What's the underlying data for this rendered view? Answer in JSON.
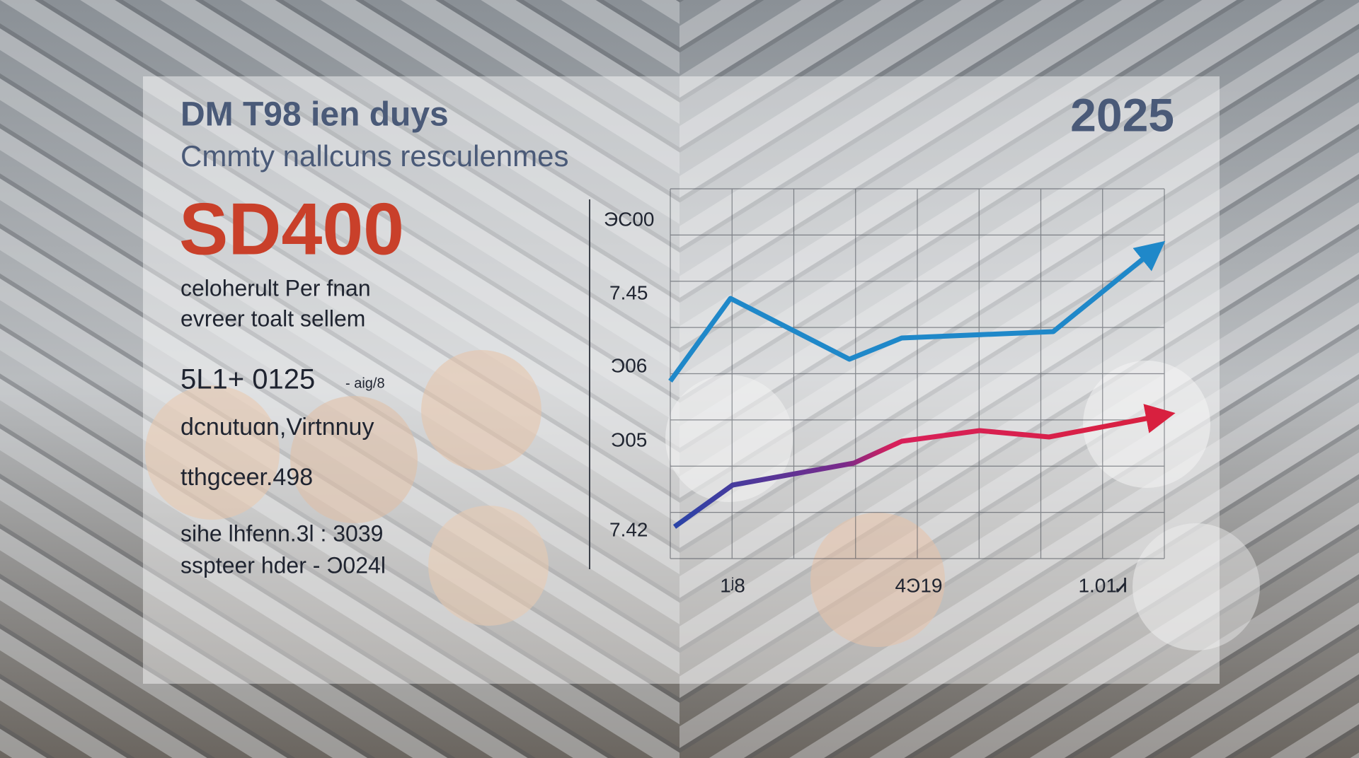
{
  "header": {
    "title": "DM T98 іen duys",
    "subtitle": "Cmmty nallcuns resculenmes",
    "year": "2025"
  },
  "product": {
    "code": "SD400",
    "lines": [
      "celoherult Per fnan",
      "evreer toalt sellem"
    ]
  },
  "specs": [
    {
      "main": "5L1+ 0125",
      "note": "- aig/8"
    },
    {
      "main": "dcnutuɑn,Virtnnuy"
    },
    {
      "main": "tthgceer.498"
    },
    {
      "main": "sihe lhfenn.3l : 3039"
    },
    {
      "main": "sspteer hder - Ɔ024l"
    }
  ],
  "chart": {
    "y_labels": [
      "ЭС00",
      "7.45",
      "Ͻ06",
      "Ͻ05",
      "7.42"
    ],
    "x_labels": [
      "1ʲ8",
      "4Ͽ19",
      "1.01Ꮧ"
    ]
  }
}
